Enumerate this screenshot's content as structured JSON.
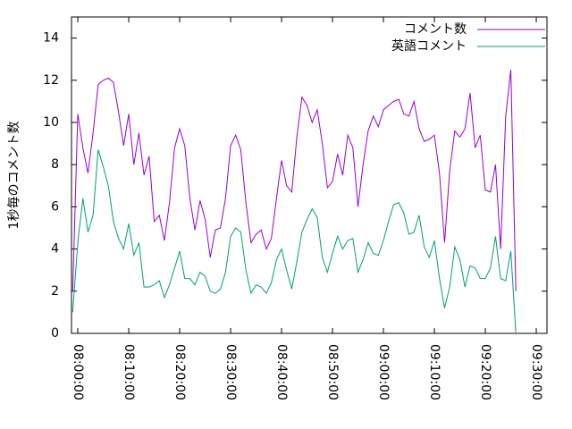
{
  "chart_data": {
    "type": "line",
    "ylabel": "1秒毎のコメント数",
    "x": [
      "07:59:00",
      "08:00:00",
      "08:01:00",
      "08:02:00",
      "08:03:00",
      "08:04:00",
      "08:05:00",
      "08:06:00",
      "08:07:00",
      "08:08:00",
      "08:09:00",
      "08:10:00",
      "08:11:00",
      "08:12:00",
      "08:13:00",
      "08:14:00",
      "08:15:00",
      "08:16:00",
      "08:17:00",
      "08:18:00",
      "08:19:00",
      "08:20:00",
      "08:21:00",
      "08:22:00",
      "08:23:00",
      "08:24:00",
      "08:25:00",
      "08:26:00",
      "08:27:00",
      "08:28:00",
      "08:29:00",
      "08:30:00",
      "08:31:00",
      "08:32:00",
      "08:33:00",
      "08:34:00",
      "08:35:00",
      "08:36:00",
      "08:37:00",
      "08:38:00",
      "08:39:00",
      "08:40:00",
      "08:41:00",
      "08:42:00",
      "08:43:00",
      "08:44:00",
      "08:45:00",
      "08:46:00",
      "08:47:00",
      "08:48:00",
      "08:49:00",
      "08:50:00",
      "08:51:00",
      "08:52:00",
      "08:53:00",
      "08:54:00",
      "08:55:00",
      "08:56:00",
      "08:57:00",
      "08:58:00",
      "08:59:00",
      "09:00:00",
      "09:01:00",
      "09:02:00",
      "09:03:00",
      "09:04:00",
      "09:05:00",
      "09:06:00",
      "09:07:00",
      "09:08:00",
      "09:09:00",
      "09:10:00",
      "09:11:00",
      "09:12:00",
      "09:13:00",
      "09:14:00",
      "09:15:00",
      "09:16:00",
      "09:17:00",
      "09:18:00",
      "09:19:00",
      "09:20:00",
      "09:21:00",
      "09:22:00",
      "09:23:00",
      "09:24:00",
      "09:25:00",
      "09:26:00"
    ],
    "series": [
      {
        "name": "コメント数",
        "color": "#9400d3",
        "values": [
          2.0,
          10.4,
          8.8,
          7.6,
          9.5,
          11.8,
          12.0,
          12.1,
          11.9,
          10.5,
          8.9,
          10.4,
          8.0,
          9.5,
          7.5,
          8.4,
          5.3,
          5.6,
          4.4,
          6.2,
          8.8,
          9.7,
          8.9,
          6.4,
          4.9,
          6.3,
          5.4,
          3.6,
          4.9,
          5.0,
          6.4,
          8.9,
          9.4,
          8.7,
          6.2,
          4.3,
          4.7,
          4.9,
          4.0,
          4.5,
          6.4,
          8.2,
          7.0,
          6.7,
          9.3,
          11.2,
          10.8,
          10.0,
          10.6,
          9.0,
          6.9,
          7.2,
          8.5,
          7.5,
          9.4,
          8.8,
          6.0,
          8.0,
          9.6,
          10.3,
          9.8,
          10.6,
          10.8,
          11.0,
          11.1,
          10.4,
          10.3,
          11.0,
          9.7,
          9.1,
          9.2,
          9.4,
          7.6,
          4.3,
          7.7,
          9.6,
          9.3,
          9.7,
          11.4,
          8.8,
          9.4,
          6.8,
          6.7,
          8.0,
          4.0,
          10.3,
          12.5,
          2.0
        ]
      },
      {
        "name": "英語コメント",
        "color": "#009e73",
        "values": [
          1.0,
          4.3,
          6.4,
          4.8,
          5.6,
          8.7,
          7.9,
          7.0,
          5.3,
          4.5,
          4.0,
          5.2,
          3.7,
          4.3,
          2.2,
          2.2,
          2.3,
          2.5,
          1.7,
          2.3,
          3.1,
          3.9,
          2.6,
          2.6,
          2.3,
          2.9,
          2.7,
          2.0,
          1.9,
          2.1,
          2.9,
          4.6,
          5.0,
          4.8,
          3.0,
          1.9,
          2.3,
          2.2,
          1.9,
          2.4,
          3.5,
          4.0,
          3.0,
          2.1,
          3.4,
          4.8,
          5.4,
          5.9,
          5.5,
          3.6,
          2.9,
          3.8,
          4.6,
          4.0,
          4.4,
          4.5,
          2.9,
          3.5,
          4.3,
          3.8,
          3.7,
          4.4,
          5.3,
          6.1,
          6.2,
          5.7,
          4.7,
          4.8,
          5.6,
          4.1,
          3.6,
          4.4,
          2.6,
          1.2,
          2.2,
          4.1,
          3.5,
          2.2,
          3.2,
          3.1,
          2.6,
          2.6,
          3.1,
          4.6,
          2.6,
          2.5,
          3.9,
          0.0
        ]
      }
    ],
    "xlim": [
      "07:58:46",
      "09:32:06"
    ],
    "xticks": [
      "08:00:00",
      "08:10:00",
      "08:20:00",
      "08:30:00",
      "08:40:00",
      "08:50:00",
      "09:00:00",
      "09:10:00",
      "09:20:00",
      "09:30:00"
    ],
    "ylim": [
      0,
      15
    ],
    "yticks": [
      0,
      2,
      4,
      6,
      8,
      10,
      12,
      14
    ],
    "legend": "top-right"
  }
}
